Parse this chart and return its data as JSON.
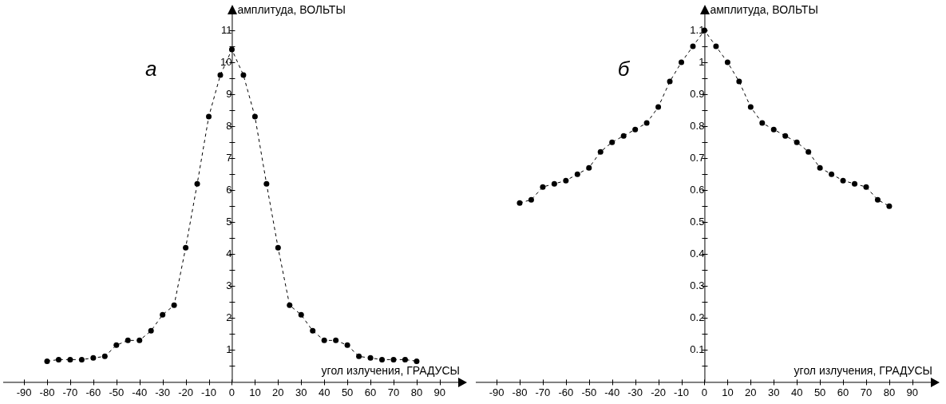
{
  "chart_data": [
    {
      "type": "line",
      "title": "а",
      "xlabel": "угол излучения, ГРАДУСЫ",
      "ylabel": "амплитуда, ВОЛЬТЫ",
      "x": [
        -80,
        -75,
        -70,
        -65,
        -60,
        -55,
        -50,
        -45,
        -40,
        -35,
        -30,
        -25,
        -20,
        -15,
        -10,
        -5,
        0,
        5,
        10,
        15,
        20,
        25,
        30,
        35,
        40,
        45,
        50,
        55,
        60,
        65,
        70,
        75,
        80
      ],
      "series": [
        {
          "color": "#000000",
          "values": [
            0.65,
            0.7,
            0.7,
            0.7,
            0.75,
            0.8,
            1.15,
            1.3,
            1.3,
            1.6,
            2.1,
            2.4,
            4.2,
            6.2,
            8.3,
            9.6,
            10.4,
            9.6,
            8.3,
            6.2,
            4.2,
            2.4,
            2.1,
            1.6,
            1.3,
            1.3,
            1.15,
            0.8,
            0.75,
            0.7,
            0.7,
            0.7,
            0.65
          ]
        }
      ],
      "xlim": [
        -99,
        98
      ],
      "ylim": [
        0,
        11.5
      ],
      "xticks": [
        -90,
        -80,
        -70,
        -60,
        -50,
        -40,
        -30,
        -20,
        -10,
        0,
        10,
        20,
        30,
        40,
        50,
        60,
        70,
        80,
        90
      ],
      "yticks": [
        {
          "value": 0.5,
          "label": null
        },
        1,
        {
          "value": 1.5,
          "label": null
        },
        2,
        {
          "value": 2.5,
          "label": null
        },
        3,
        {
          "value": 3.5,
          "label": null
        },
        4,
        {
          "value": 4.5,
          "label": null
        },
        5,
        {
          "value": 5.5,
          "label": null
        },
        6,
        {
          "value": 6.5,
          "label": null
        },
        7,
        {
          "value": 7.5,
          "label": null
        },
        8,
        {
          "value": 8.5,
          "label": null
        },
        9,
        {
          "value": 9.5,
          "label": null
        },
        10,
        {
          "value": 10.5,
          "label": null
        },
        11
      ],
      "grid": false,
      "legend": false,
      "marker": "circle",
      "line_style": "dashed"
    },
    {
      "type": "line",
      "title": "б",
      "xlabel": "угол излучения, ГРАДУСЫ",
      "ylabel": "амплитуда, ВОЛЬТЫ",
      "x": [
        -80,
        -75,
        -70,
        -65,
        -60,
        -55,
        -50,
        -45,
        -40,
        -35,
        -30,
        -25,
        -20,
        -15,
        -10,
        -5,
        0,
        5,
        10,
        15,
        20,
        25,
        30,
        35,
        40,
        45,
        50,
        55,
        60,
        65,
        70,
        75,
        80
      ],
      "series": [
        {
          "color": "#000000",
          "values": [
            0.56,
            0.57,
            0.61,
            0.62,
            0.63,
            0.65,
            0.67,
            0.72,
            0.75,
            0.77,
            0.79,
            0.81,
            0.86,
            0.94,
            1.0,
            1.05,
            1.1,
            1.05,
            1.0,
            0.94,
            0.86,
            0.81,
            0.79,
            0.77,
            0.75,
            0.72,
            0.67,
            0.65,
            0.63,
            0.62,
            0.61,
            0.57,
            0.55
          ]
        }
      ],
      "xlim": [
        -99,
        98
      ],
      "ylim": [
        0,
        1.15
      ],
      "xticks": [
        -90,
        -80,
        -70,
        -60,
        -50,
        -40,
        -30,
        -20,
        -10,
        0,
        10,
        20,
        30,
        40,
        50,
        60,
        70,
        80,
        90
      ],
      "yticks": [
        {
          "value": 0.05,
          "label": null
        },
        0.1,
        {
          "value": 0.15,
          "label": null
        },
        0.2,
        {
          "value": 0.25,
          "label": null
        },
        0.3,
        {
          "value": 0.35,
          "label": null
        },
        0.4,
        {
          "value": 0.45,
          "label": null
        },
        0.5,
        {
          "value": 0.55,
          "label": null
        },
        0.6,
        {
          "value": 0.65,
          "label": null
        },
        0.7,
        {
          "value": 0.75,
          "label": null
        },
        0.8,
        {
          "value": 0.85,
          "label": null
        },
        0.9,
        {
          "value": 0.95,
          "label": null
        },
        1,
        {
          "value": 1.05,
          "label": null
        },
        1.1
      ],
      "grid": false,
      "legend": false,
      "marker": "circle",
      "line_style": "dashed"
    }
  ]
}
